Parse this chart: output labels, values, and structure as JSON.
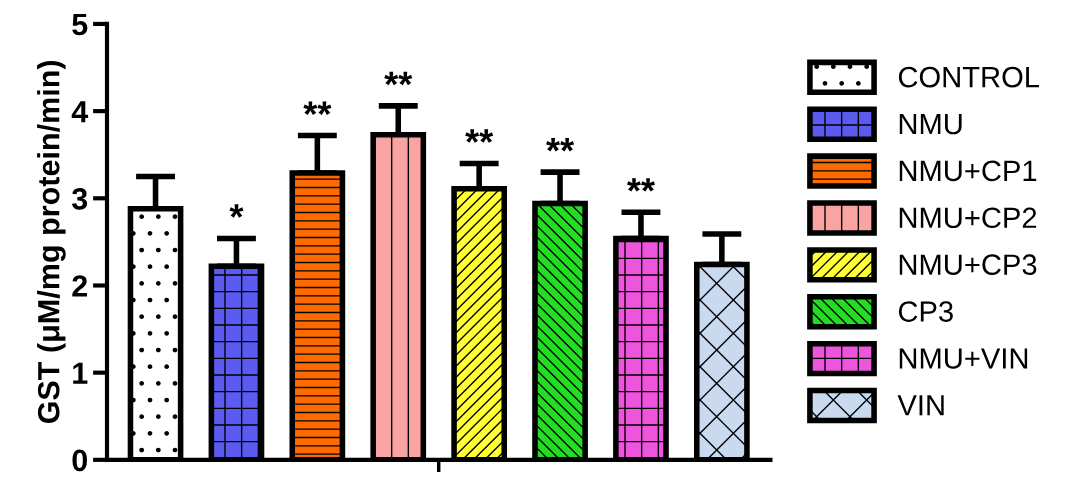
{
  "chart_data": {
    "type": "bar",
    "ylabel": "GST (μM/mg protein/min)",
    "categories": [
      null,
      null,
      null,
      null,
      null,
      null,
      null,
      null
    ],
    "series": [
      {
        "name": "CONTROL",
        "color": "#ffffff",
        "values": [
          2.88,
          null,
          null,
          null,
          null,
          null,
          null,
          null
        ],
        "errors": [
          [
            2.88,
            3.25
          ],
          null,
          null,
          null,
          null,
          null,
          null,
          null
        ]
      },
      {
        "name": "NMU",
        "color": "#5b5bf0",
        "values": [
          null,
          2.22,
          null,
          null,
          null,
          null,
          null,
          null
        ],
        "errors": [
          null,
          [
            2.22,
            2.54
          ],
          null,
          null,
          null,
          null,
          null,
          null
        ],
        "value_labels": [
          null,
          "*",
          null,
          null,
          null,
          null,
          null,
          null
        ]
      },
      {
        "name": "NMU+CP1",
        "color": "#ff6a00",
        "values": [
          null,
          null,
          3.29,
          null,
          null,
          null,
          null,
          null
        ],
        "errors": [
          null,
          null,
          [
            3.29,
            3.72
          ],
          null,
          null,
          null,
          null,
          null
        ],
        "value_labels": [
          null,
          null,
          "**",
          null,
          null,
          null,
          null,
          null
        ]
      },
      {
        "name": "NMU+CP2",
        "color": "#f9a3a3",
        "values": [
          null,
          null,
          null,
          3.73,
          null,
          null,
          null,
          null
        ],
        "errors": [
          null,
          null,
          null,
          [
            3.73,
            4.06
          ],
          null,
          null,
          null,
          null
        ],
        "value_labels": [
          null,
          null,
          null,
          "**",
          null,
          null,
          null,
          null
        ]
      },
      {
        "name": "NMU+CP3",
        "color": "#ffff33",
        "values": [
          null,
          null,
          null,
          null,
          3.11,
          null,
          null,
          null
        ],
        "errors": [
          null,
          null,
          null,
          null,
          [
            3.11,
            3.4
          ],
          null,
          null,
          null
        ],
        "value_labels": [
          null,
          null,
          null,
          null,
          "**",
          null,
          null,
          null
        ]
      },
      {
        "name": "CP3",
        "color": "#22dd22",
        "values": [
          null,
          null,
          null,
          null,
          null,
          2.94,
          null,
          null
        ],
        "errors": [
          null,
          null,
          null,
          null,
          null,
          [
            2.94,
            3.3
          ],
          null,
          null
        ],
        "value_labels": [
          null,
          null,
          null,
          null,
          null,
          "**",
          null,
          null
        ]
      },
      {
        "name": "NMU+VIN",
        "color": "#ee55dd",
        "values": [
          null,
          null,
          null,
          null,
          null,
          null,
          2.54,
          null
        ],
        "errors": [
          null,
          null,
          null,
          null,
          null,
          null,
          [
            2.54,
            2.84
          ],
          null
        ],
        "value_labels": [
          null,
          null,
          null,
          null,
          null,
          null,
          "**",
          null
        ]
      },
      {
        "name": "VIN",
        "color": "#c9daf0",
        "values": [
          null,
          null,
          null,
          null,
          null,
          null,
          null,
          2.24
        ],
        "errors": [
          null,
          null,
          null,
          null,
          null,
          null,
          null,
          [
            2.24,
            2.59
          ]
        ]
      }
    ],
    "ylim": [
      0,
      5
    ],
    "yticks": [
      0,
      1,
      2,
      3,
      4,
      5
    ],
    "tick_labels": "y",
    "legend": "right",
    "grid": false
  }
}
